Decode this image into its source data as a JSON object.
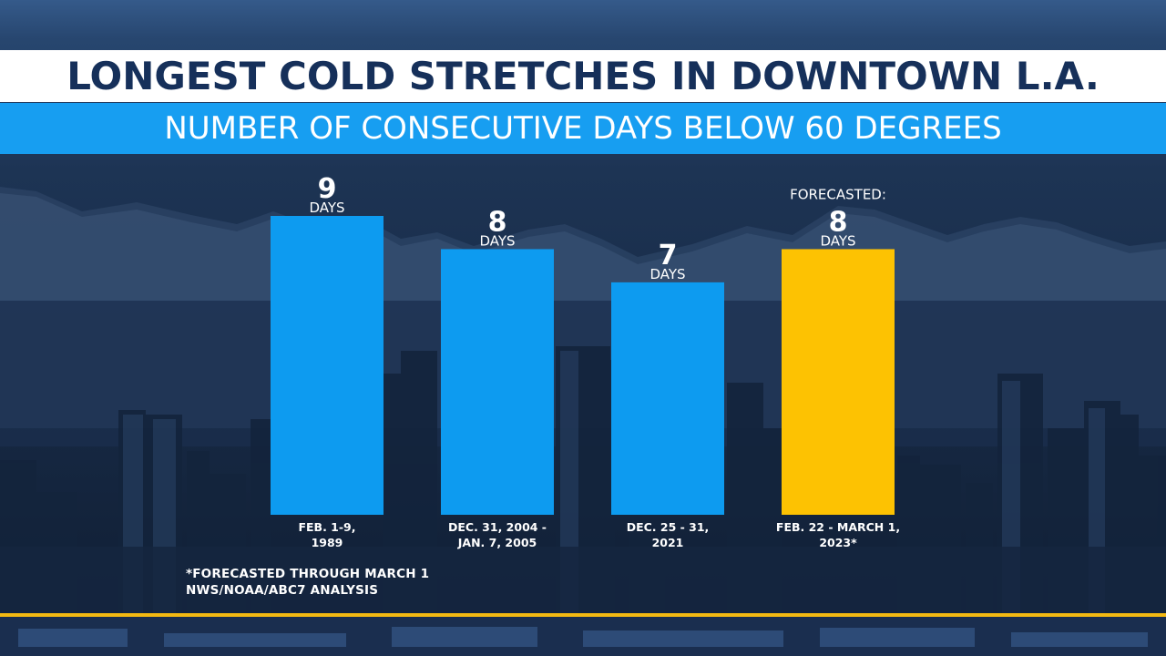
{
  "header": {
    "title": "LONGEST COLD STRETCHES IN DOWNTOWN L.A.",
    "subtitle": "NUMBER OF CONSECUTIVE DAYS BELOW 60 DEGREES"
  },
  "footnotes": {
    "line1": "*FORECASTED THROUGH MARCH 1",
    "line2": "NWS/NOAA/ABC7 ANALYSIS"
  },
  "colors": {
    "title_text": "#16305a",
    "subtitle_bar": "#179ef1",
    "bar_blue": "#0d9bf0",
    "bar_gold": "#fdc202",
    "accent_line": "#f3b912"
  },
  "chart_data": {
    "type": "bar",
    "title": "LONGEST COLD STRETCHES IN DOWNTOWN L.A.",
    "subtitle": "NUMBER OF CONSECUTIVE DAYS BELOW 60 DEGREES",
    "categories": [
      [
        "FEB. 1-9,",
        "1989"
      ],
      [
        "DEC. 31, 2004 -",
        "JAN. 7, 2005"
      ],
      [
        "DEC. 25 - 31,",
        "2021"
      ],
      [
        "FEB. 22 - MARCH 1,",
        "2023*"
      ]
    ],
    "values": [
      9,
      8,
      7,
      8
    ],
    "value_unit": "DAYS",
    "value_prefix": [
      "",
      "",
      "",
      "FORECASTED:"
    ],
    "bar_colors": [
      "#0d9bf0",
      "#0d9bf0",
      "#0d9bf0",
      "#fdc202"
    ],
    "ylim": [
      0,
      9
    ],
    "grid": false,
    "xlabel": "",
    "ylabel": ""
  }
}
